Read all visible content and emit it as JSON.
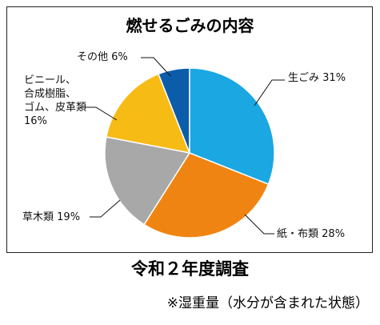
{
  "chart_data": {
    "type": "pie",
    "title": "燃せるごみの内容",
    "categories": [
      "生ごみ",
      "紙・布類",
      "草木類",
      "ビニール、\n合成樹脂、\nゴム、皮革類",
      "その他"
    ],
    "values": [
      31,
      28,
      19,
      16,
      6
    ],
    "value_labels": [
      "31%",
      "28%",
      "19%",
      "16%",
      "6%"
    ],
    "colors": [
      "#1aa7e2",
      "#f08412",
      "#a8a8a8",
      "#f7bb16",
      "#0b5daa"
    ]
  },
  "footer": {
    "survey": "令和２年度調査",
    "note": "※湿重量（水分が含まれた状態）"
  }
}
